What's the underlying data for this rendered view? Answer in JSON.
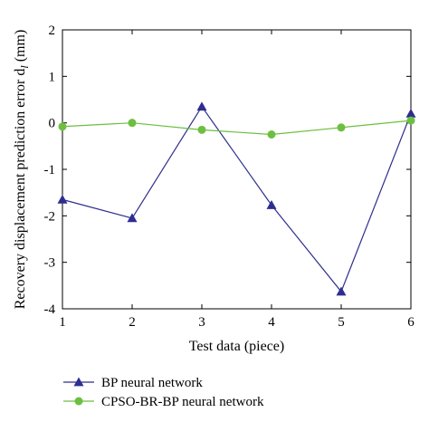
{
  "chart_data": {
    "type": "line",
    "xlabel": "Test data (piece)",
    "ylabel": "Recovery displacement prediction error d",
    "ylabel_subscript": "l",
    "ylabel_unit": " (mm)",
    "xlim": [
      1,
      6
    ],
    "ylim": [
      -4,
      2
    ],
    "x_ticks": [
      1,
      2,
      3,
      4,
      5,
      6
    ],
    "y_ticks": [
      2,
      1,
      0,
      -1,
      -2,
      -3,
      -4
    ],
    "grid": false,
    "legend_position": "bottom",
    "x": [
      1,
      2,
      3,
      4,
      5,
      6
    ],
    "series": [
      {
        "name": "BP neural network",
        "marker": "triangle",
        "color": "#2e2e8f",
        "values": [
          -1.65,
          -2.05,
          0.35,
          -1.77,
          -3.63,
          0.2
        ]
      },
      {
        "name": "CPSO-BR-BP neural network",
        "marker": "circle",
        "color": "#6cbf3f",
        "values": [
          -0.08,
          0.0,
          -0.15,
          -0.25,
          -0.1,
          0.05
        ]
      }
    ]
  }
}
